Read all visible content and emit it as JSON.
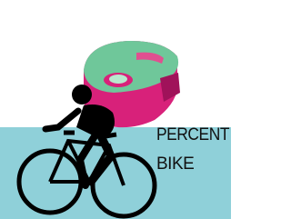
{
  "label": {
    "line1": "PERCENT",
    "line2": "BIKE"
  }
}
